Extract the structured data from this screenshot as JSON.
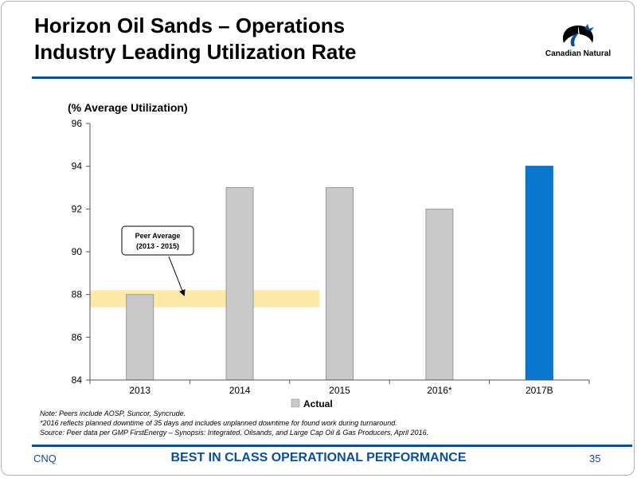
{
  "header": {
    "title_line1": "Horizon Oil Sands – Operations",
    "title_line2": "Industry Leading Utilization Rate",
    "logo_text": "Canadian Natural"
  },
  "chart_data": {
    "type": "bar",
    "ylabel": "(% Average Utilization)",
    "ylim": [
      84,
      96
    ],
    "yticks": [
      84,
      86,
      88,
      90,
      92,
      94,
      96
    ],
    "categories": [
      "2013",
      "2014",
      "2015",
      "2016*",
      "2017B"
    ],
    "values": [
      88,
      93,
      93,
      92,
      94
    ],
    "colors": [
      "#c9c9c9",
      "#c9c9c9",
      "#c9c9c9",
      "#c9c9c9",
      "#0b78cf"
    ],
    "grid": false,
    "legend": {
      "label": "Actual",
      "placement": "bottom",
      "color": "#c9c9c9"
    },
    "peer_band": {
      "low": 87.4,
      "high": 88.2,
      "color": "#fde9a8"
    },
    "annotation": {
      "line1": "Peer Average",
      "line2": "(2013 - 2015)"
    }
  },
  "notes": [
    "Note: Peers include AOSP, Suncor, Syncrude.",
    "*2016 reflects planned downtime of 35 days and includes unplanned downtime for found work during turnaround.",
    "Source: Peer data per GMP FirstEnergy – Synopsis: Integrated, Oilsands, and Large Cap Oil & Gas Producers, April 2016."
  ],
  "footer": {
    "left": "CNQ",
    "center": "BEST IN CLASS OPERATIONAL PERFORMANCE",
    "page": "35"
  },
  "colors": {
    "accent": "#0a4ea2",
    "bar_highlight": "#0b78cf",
    "bar_actual": "#c9c9c9"
  }
}
